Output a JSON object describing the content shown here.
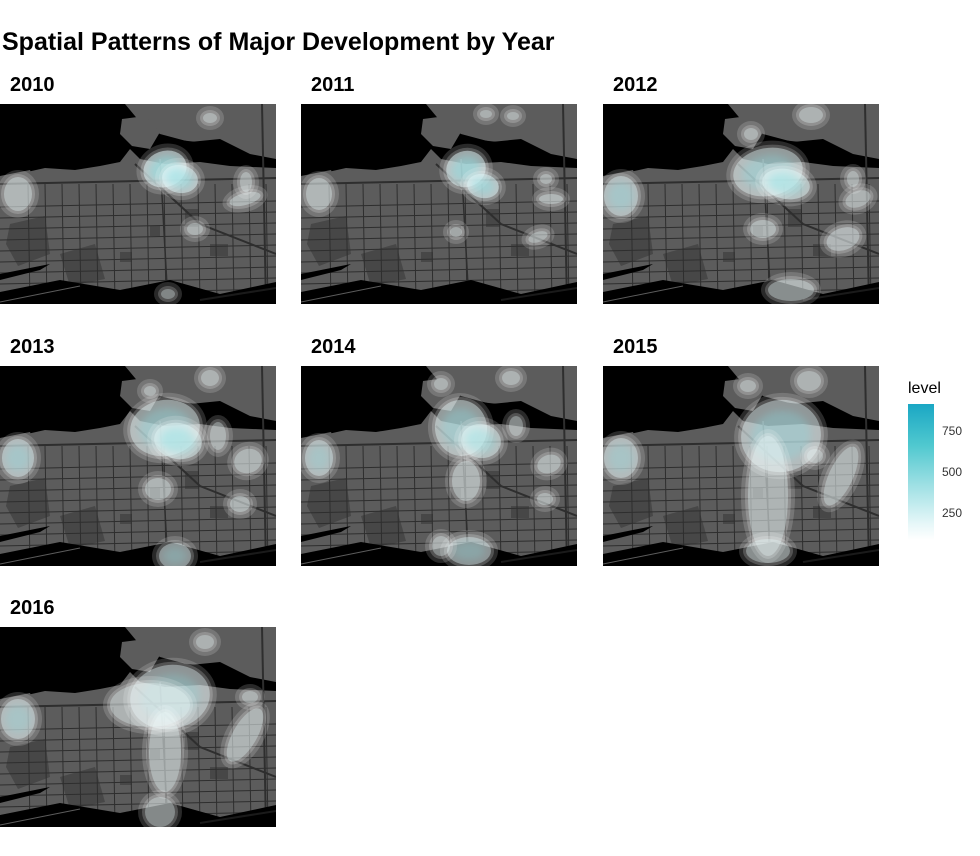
{
  "title": "Spatial Patterns of Major Development by Year",
  "panels": [
    {
      "year": "2010"
    },
    {
      "year": "2011"
    },
    {
      "year": "2012"
    },
    {
      "year": "2013"
    },
    {
      "year": "2014"
    },
    {
      "year": "2015"
    },
    {
      "year": "2016"
    }
  ],
  "legend": {
    "title": "level",
    "ticks": [
      750,
      500,
      250
    ],
    "range": [
      80,
      900
    ],
    "colors": {
      "high": "#1aa7c4",
      "low": "#ffffff"
    }
  },
  "colors": {
    "water": "#000000",
    "land": "#5c5c5c",
    "land_dark": "#474747",
    "roads": "#2e2e2e",
    "hotspot": "#86dfe3"
  }
}
